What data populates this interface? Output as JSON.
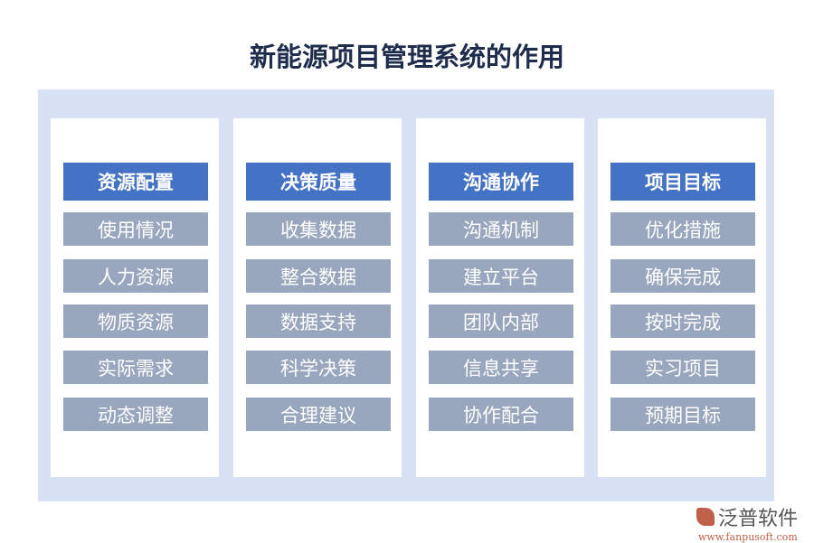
{
  "title": "新能源项目管理系统的作用",
  "columns": [
    {
      "header": "资源配置",
      "items": [
        "使用情况",
        "人力资源",
        "物质资源",
        "实际需求",
        "动态调整"
      ]
    },
    {
      "header": "决策质量",
      "items": [
        "收集数据",
        "整合数据",
        "数据支持",
        "科学决策",
        "合理建议"
      ]
    },
    {
      "header": "沟通协作",
      "items": [
        "沟通机制",
        "建立平台",
        "团队内部",
        "信息共享",
        "协作配合"
      ]
    },
    {
      "header": "项目目标",
      "items": [
        "优化措施",
        "确保完成",
        "按时完成",
        "实习项目",
        "预期目标"
      ]
    }
  ],
  "logo": {
    "brand": "泛普软件",
    "url": "www.fanpusoft.com"
  },
  "colors": {
    "header": "#4472c4",
    "item": "#98a7bd",
    "panel": "#d9e2f5"
  }
}
